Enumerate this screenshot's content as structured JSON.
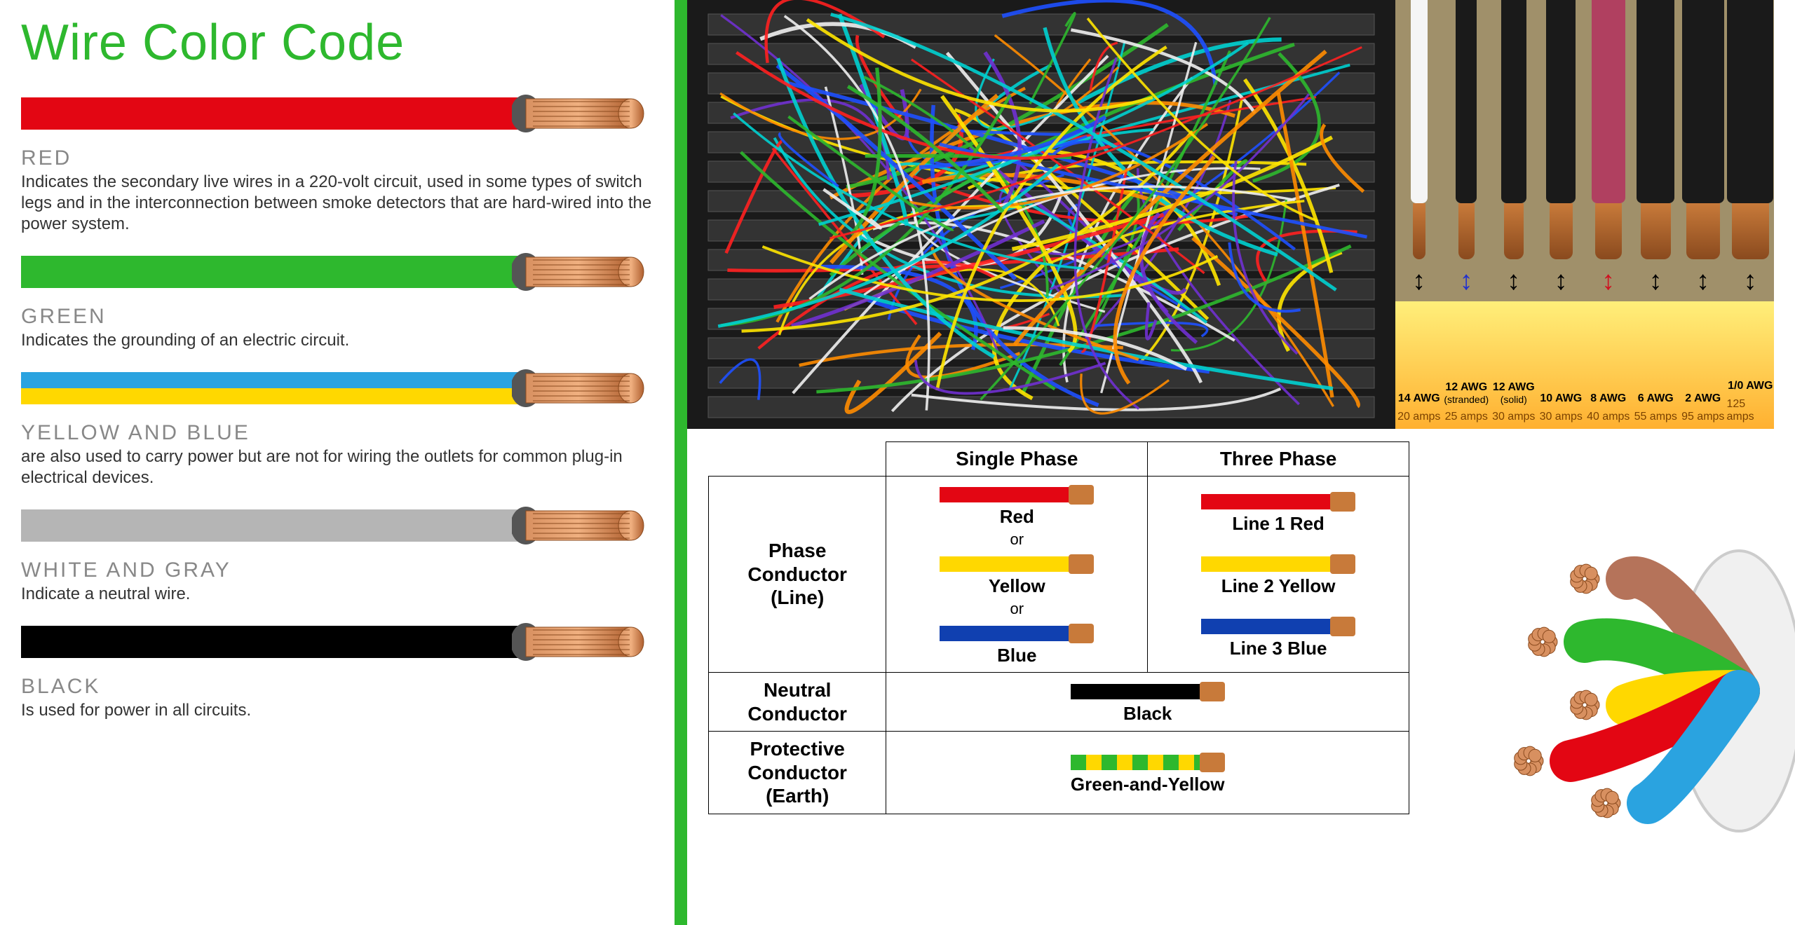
{
  "title": "Wire Color Code",
  "accent_color": "#2eb82e",
  "left_entries": [
    {
      "color": "#e30613",
      "heading": "RED",
      "desc": "Indicates the secondary live wires in a 220-volt circuit, used in some types of switch legs and in the interconnection between smoke detectors that are hard-wired into the power system."
    },
    {
      "color": "#2eb82e",
      "heading": "GREEN",
      "desc": "Indicates the grounding of an electric circuit."
    },
    {
      "color": "yb",
      "heading": "YELLOW AND BLUE",
      "desc": "are also used to carry power but are not for wiring the outlets for common plug-in electrical devices."
    },
    {
      "color": "#b5b5b5",
      "heading": "WHITE AND GRAY",
      "desc": "Indicate a neutral wire."
    },
    {
      "color": "#000000",
      "heading": "BLACK",
      "desc": "Is used for power in all circuits."
    }
  ],
  "awg_strips": [
    {
      "insul": "#f5f5f5",
      "arrow": "#000"
    },
    {
      "insul": "#1a1a1a",
      "arrow": "#2030d0"
    },
    {
      "insul": "#1a1a1a",
      "arrow": "#000"
    },
    {
      "insul": "#1a1a1a",
      "arrow": "#000"
    },
    {
      "insul": "#b04060",
      "arrow": "#d01020"
    },
    {
      "insul": "#1a1a1a",
      "arrow": "#000"
    },
    {
      "insul": "#1a1a1a",
      "arrow": "#000"
    },
    {
      "insul": "#1a1a1a",
      "arrow": "#000"
    }
  ],
  "awg_specs": [
    {
      "label": "14 AWG",
      "sub": "",
      "amps": "20 amps"
    },
    {
      "label": "12 AWG",
      "sub": "(stranded)",
      "amps": "25 amps"
    },
    {
      "label": "12 AWG",
      "sub": "(solid)",
      "amps": "30 amps"
    },
    {
      "label": "10 AWG",
      "sub": "",
      "amps": "30 amps"
    },
    {
      "label": "8 AWG",
      "sub": "",
      "amps": "40 amps"
    },
    {
      "label": "6 AWG",
      "sub": "",
      "amps": "55 amps"
    },
    {
      "label": "2 AWG",
      "sub": "",
      "amps": "95 amps"
    },
    {
      "label": "1/0 AWG",
      "sub": "",
      "amps": "125 amps"
    }
  ],
  "phase_table": {
    "headers": [
      "",
      "Single Phase",
      "Three Phase"
    ],
    "rows": [
      {
        "label": "Phase\nConductor\n(Line)",
        "single": [
          {
            "color": "#e30613",
            "text": "Red"
          },
          {
            "or": "or"
          },
          {
            "color": "#ffd800",
            "text": "Yellow"
          },
          {
            "or": "or"
          },
          {
            "color": "#1040b0",
            "text": "Blue"
          }
        ],
        "three": [
          {
            "color": "#e30613",
            "text": "Line 1 Red"
          },
          {
            "spacer": true
          },
          {
            "color": "#ffd800",
            "text": "Line 2 Yellow"
          },
          {
            "spacer": true
          },
          {
            "color": "#1040b0",
            "text": "Line 3 Blue"
          }
        ]
      },
      {
        "label": "Neutral\nConductor",
        "span": {
          "color": "#000000",
          "text": "Black"
        }
      },
      {
        "label": "Protective\nConductor\n(Earth)",
        "span": {
          "color": "gy",
          "text": "Green-and-Yellow"
        }
      }
    ]
  },
  "cable_bundle_colors": [
    "#b5735a",
    "#2eb82e",
    "#ffd800",
    "#e30613",
    "#2aa3e0"
  ]
}
